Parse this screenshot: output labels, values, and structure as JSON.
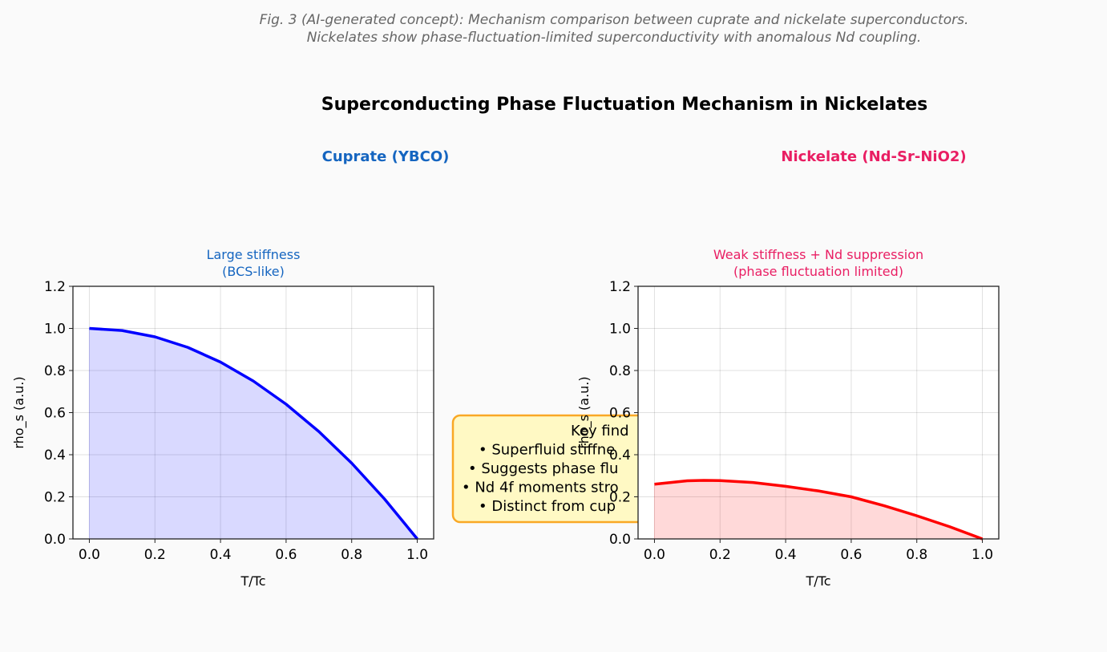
{
  "caption": {
    "line1": "Fig. 3 (AI-generated concept): Mechanism comparison between cuprate and nickelate superconductors.",
    "line2": "Nickelates show phase-fluctuation-limited superconductivity with anomalous Nd coupling."
  },
  "suptitle": "Superconducting Phase Fluctuation Mechanism in Nickelates",
  "colors": {
    "cuprate": "#1565c0",
    "nickelate": "#e91e63",
    "blue_line": "#0000ff",
    "red_line": "#ff0000",
    "box_fill": "#fff9c4",
    "box_edge": "#f9a825"
  },
  "annotation": {
    "lines": [
      "Key find",
      "• Superfluid stiffne",
      "• Suggests phase flu",
      "• Nd 4f moments stro",
      "• Distinct from cup"
    ]
  },
  "chart_data": [
    {
      "type": "area",
      "header": "Cuprate (YBCO)",
      "title": "Large stiffness\n(BCS-like)",
      "title_lines": [
        "Large stiffness",
        "(BCS-like)"
      ],
      "xlabel": "T/Tc",
      "ylabel": "rho_s (a.u.)",
      "xlim": [
        -0.05,
        1.05
      ],
      "ylim": [
        0,
        1.2
      ],
      "xticks": [
        "0.0",
        "0.2",
        "0.4",
        "0.6",
        "0.8",
        "1.0"
      ],
      "yticks": [
        "0.0",
        "0.2",
        "0.4",
        "0.6",
        "0.8",
        "1.0",
        "1.2"
      ],
      "grid": true,
      "color": "#0000ff",
      "x": [
        0,
        0.1,
        0.2,
        0.3,
        0.4,
        0.5,
        0.6,
        0.7,
        0.8,
        0.9,
        1.0
      ],
      "y": [
        1.0,
        0.99,
        0.96,
        0.91,
        0.84,
        0.75,
        0.64,
        0.51,
        0.36,
        0.19,
        0.0
      ]
    },
    {
      "type": "area",
      "header": "Nickelate (Nd-Sr-NiO2)",
      "title_lines": [
        "Weak stiffness + Nd suppression",
        "(phase fluctuation limited)"
      ],
      "xlabel": "T/Tc",
      "ylabel": "rho_s (a.u.)",
      "xlim": [
        -0.05,
        1.05
      ],
      "ylim": [
        0,
        1.2
      ],
      "xticks": [
        "0.0",
        "0.2",
        "0.4",
        "0.6",
        "0.8",
        "1.0"
      ],
      "yticks": [
        "0.0",
        "0.2",
        "0.4",
        "0.6",
        "0.8",
        "1.0",
        "1.2"
      ],
      "grid": true,
      "color": "#ff0000",
      "x": [
        0,
        0.1,
        0.15,
        0.2,
        0.3,
        0.4,
        0.5,
        0.6,
        0.7,
        0.8,
        0.9,
        1.0
      ],
      "y": [
        0.26,
        0.276,
        0.278,
        0.277,
        0.268,
        0.25,
        0.228,
        0.2,
        0.158,
        0.11,
        0.058,
        0.0
      ]
    }
  ]
}
